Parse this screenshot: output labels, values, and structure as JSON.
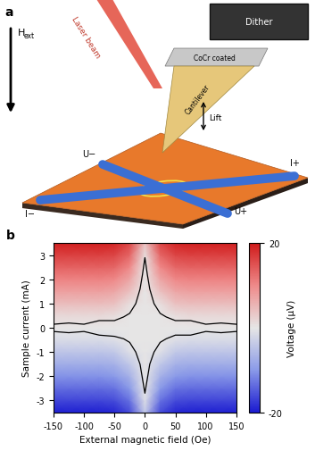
{
  "panels": [
    "a",
    "b"
  ],
  "diagram": {
    "field_arrow": {
      "text": "H",
      "subscript": "ext"
    },
    "laser": "Laser beam",
    "dither": "Dither",
    "coating": "CoCr coated",
    "cantilever": "Cantilever",
    "lift": "Lift",
    "contacts": {
      "U_minus": "U−",
      "U_plus": "U+",
      "I_minus": "I−",
      "I_plus": "I+"
    }
  },
  "chart_data": {
    "type": "heatmap",
    "xlabel": "External magnetic field (Oe)",
    "ylabel": "Sample current (mA)",
    "xlim": [
      -150,
      150
    ],
    "xticks": [
      -150,
      -100,
      -50,
      0,
      50,
      100,
      150
    ],
    "ylim": [
      -3.5,
      3.5
    ],
    "yticks": [
      -3,
      -2,
      -1,
      0,
      1,
      2,
      3
    ],
    "x": [
      -150,
      -125,
      -100,
      -75,
      -50,
      -25,
      0,
      25,
      50,
      75,
      100,
      125,
      150
    ],
    "y": [
      -3.5,
      -3,
      -2.5,
      -2,
      -1.5,
      -1,
      -0.5,
      0,
      0.5,
      1,
      1.5,
      2,
      2.5,
      3,
      3.5
    ],
    "cells": [
      [
        -19.5,
        -19.5,
        -19.5,
        -19.5,
        -19,
        -16,
        -4,
        -16,
        -19,
        -19.5,
        -19.5,
        -19.5,
        -19.5
      ],
      [
        -16.5,
        -16.5,
        -16.5,
        -16.5,
        -16,
        -13,
        -1,
        -13,
        -16,
        -16.5,
        -16.5,
        -16.5,
        -16.5
      ],
      [
        -13.5,
        -13.5,
        -13.5,
        -13.5,
        -13,
        -10,
        0,
        -10,
        -13,
        -13.5,
        -13.5,
        -13.5,
        -13.5
      ],
      [
        -10.5,
        -10.5,
        -10.5,
        -10.5,
        -10,
        -7,
        0,
        -7,
        -10,
        -10.5,
        -10.5,
        -10.5,
        -10.5
      ],
      [
        -7.5,
        -7.5,
        -7.5,
        -7.5,
        -7,
        -4,
        0,
        -4,
        -7,
        -7.5,
        -7.5,
        -7.5,
        -7.5
      ],
      [
        -4.5,
        -4.5,
        -4.5,
        -4.5,
        -4,
        -1,
        0,
        -1,
        -4,
        -4.5,
        -4.5,
        -4.5,
        -4.5
      ],
      [
        -1.5,
        -1.5,
        -1.5,
        -1.5,
        -1,
        0,
        0,
        0,
        -1,
        -1.5,
        -1.5,
        -1.5,
        -1.5
      ],
      [
        0,
        0,
        0,
        0,
        0,
        0,
        0,
        0,
        0,
        0,
        0,
        0,
        0
      ],
      [
        1.5,
        1.5,
        1.5,
        1.5,
        1,
        0,
        0,
        0,
        1,
        1.5,
        1.5,
        1.5,
        1.5
      ],
      [
        4.5,
        4.5,
        4.5,
        4.5,
        4,
        1,
        0,
        1,
        4,
        4.5,
        4.5,
        4.5,
        4.5
      ],
      [
        7.5,
        7.5,
        7.5,
        7.5,
        7,
        4,
        0,
        4,
        7,
        7.5,
        7.5,
        7.5,
        7.5
      ],
      [
        10.5,
        10.5,
        10.5,
        10.5,
        10,
        7,
        0,
        7,
        10,
        10.5,
        10.5,
        10.5,
        10.5
      ],
      [
        13.5,
        13.5,
        13.5,
        13.5,
        13,
        10,
        0,
        10,
        13,
        13.5,
        13.5,
        13.5,
        13.5
      ],
      [
        16.5,
        16.5,
        16.5,
        16.5,
        16,
        13,
        1,
        13,
        16,
        16.5,
        16.5,
        16.5,
        16.5
      ],
      [
        19.5,
        19.5,
        19.5,
        19.5,
        19,
        16,
        4,
        16,
        19,
        19.5,
        19.5,
        19.5,
        19.5
      ]
    ],
    "colorbar": {
      "label": "Voltage (μV)",
      "range": [
        -20,
        20
      ],
      "ticks": [
        -20,
        20
      ]
    },
    "boundary": {
      "color": "#000000",
      "x": [
        -150,
        -125,
        -100,
        -75,
        -50,
        -35,
        -25,
        -15,
        -8,
        -4,
        0,
        4,
        8,
        15,
        25,
        35,
        50,
        75,
        100,
        125,
        150
      ],
      "upper": [
        0.15,
        0.2,
        0.15,
        0.3,
        0.3,
        0.45,
        0.6,
        1.0,
        1.6,
        2.2,
        2.9,
        2.2,
        1.6,
        1.0,
        0.6,
        0.45,
        0.3,
        0.3,
        0.15,
        0.2,
        0.15
      ],
      "lower": [
        -0.15,
        -0.2,
        -0.15,
        -0.3,
        -0.35,
        -0.45,
        -0.6,
        -1.0,
        -1.5,
        -2.1,
        -2.7,
        -2.1,
        -1.5,
        -1.0,
        -0.6,
        -0.45,
        -0.3,
        -0.3,
        -0.15,
        -0.2,
        -0.15
      ]
    }
  }
}
